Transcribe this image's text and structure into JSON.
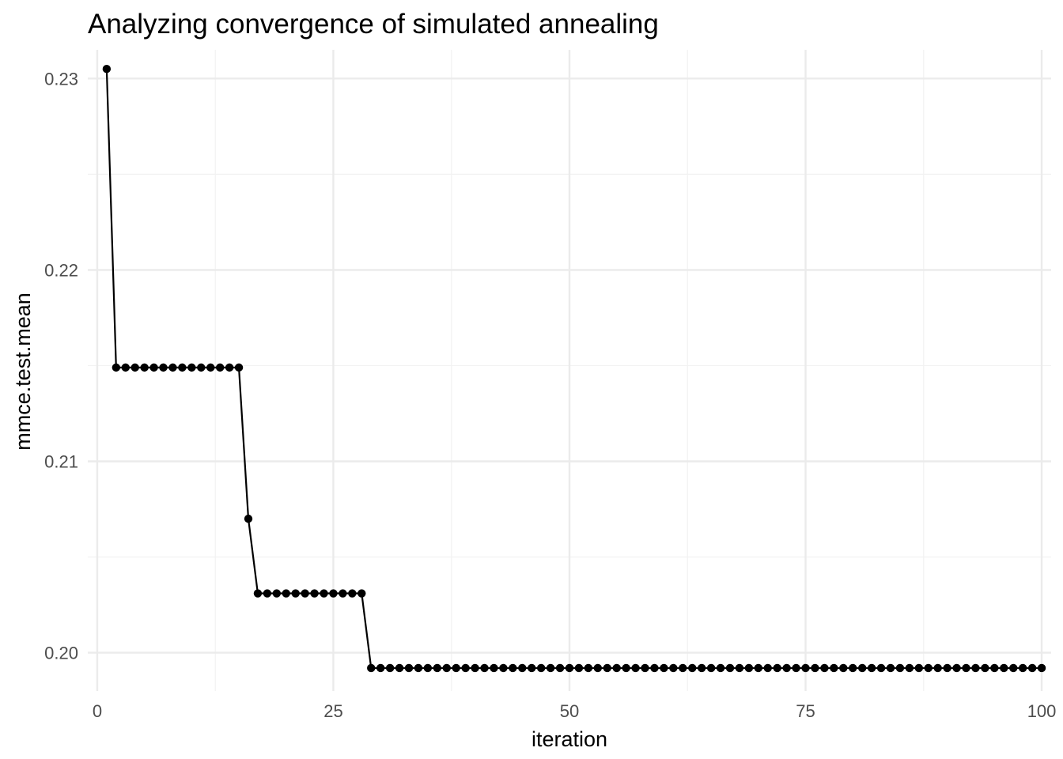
{
  "chart_data": {
    "type": "line",
    "title": "Analyzing convergence of simulated annealing",
    "xlabel": "iteration",
    "ylabel": "mmce.test.mean",
    "xlim": [
      -1,
      101
    ],
    "ylim": [
      0.198,
      0.2315
    ],
    "x_ticks": [
      0,
      25,
      50,
      75,
      100
    ],
    "x_tick_labels": [
      "0",
      "25",
      "50",
      "75",
      "100"
    ],
    "y_ticks": [
      0.2,
      0.21,
      0.22,
      0.23
    ],
    "y_tick_labels": [
      "0.20",
      "0.21",
      "0.22",
      "0.23"
    ],
    "x_minor_ticks": [
      12.5,
      37.5,
      62.5,
      87.5
    ],
    "y_minor_ticks": [
      0.205,
      0.215,
      0.225
    ],
    "grid": true,
    "legend": "none",
    "line_color": "#000000",
    "x": [
      1,
      2,
      3,
      4,
      5,
      6,
      7,
      8,
      9,
      10,
      11,
      12,
      13,
      14,
      15,
      16,
      17,
      18,
      19,
      20,
      21,
      22,
      23,
      24,
      25,
      26,
      27,
      28,
      29,
      30,
      31,
      32,
      33,
      34,
      35,
      36,
      37,
      38,
      39,
      40,
      41,
      42,
      43,
      44,
      45,
      46,
      47,
      48,
      49,
      50,
      51,
      52,
      53,
      54,
      55,
      56,
      57,
      58,
      59,
      60,
      61,
      62,
      63,
      64,
      65,
      66,
      67,
      68,
      69,
      70,
      71,
      72,
      73,
      74,
      75,
      76,
      77,
      78,
      79,
      80,
      81,
      82,
      83,
      84,
      85,
      86,
      87,
      88,
      89,
      90,
      91,
      92,
      93,
      94,
      95,
      96,
      97,
      98,
      99,
      100
    ],
    "y": [
      0.2305,
      0.2149,
      0.2149,
      0.2149,
      0.2149,
      0.2149,
      0.2149,
      0.2149,
      0.2149,
      0.2149,
      0.2149,
      0.2149,
      0.2149,
      0.2149,
      0.2149,
      0.207,
      0.2031,
      0.2031,
      0.2031,
      0.2031,
      0.2031,
      0.2031,
      0.2031,
      0.2031,
      0.2031,
      0.2031,
      0.2031,
      0.2031,
      0.1992,
      0.1992,
      0.1992,
      0.1992,
      0.1992,
      0.1992,
      0.1992,
      0.1992,
      0.1992,
      0.1992,
      0.1992,
      0.1992,
      0.1992,
      0.1992,
      0.1992,
      0.1992,
      0.1992,
      0.1992,
      0.1992,
      0.1992,
      0.1992,
      0.1992,
      0.1992,
      0.1992,
      0.1992,
      0.1992,
      0.1992,
      0.1992,
      0.1992,
      0.1992,
      0.1992,
      0.1992,
      0.1992,
      0.1992,
      0.1992,
      0.1992,
      0.1992,
      0.1992,
      0.1992,
      0.1992,
      0.1992,
      0.1992,
      0.1992,
      0.1992,
      0.1992,
      0.1992,
      0.1992,
      0.1992,
      0.1992,
      0.1992,
      0.1992,
      0.1992,
      0.1992,
      0.1992,
      0.1992,
      0.1992,
      0.1992,
      0.1992,
      0.1992,
      0.1992,
      0.1992,
      0.1992,
      0.1992,
      0.1992,
      0.1992,
      0.1992,
      0.1992,
      0.1992,
      0.1992,
      0.1992,
      0.1992,
      0.1992
    ]
  }
}
